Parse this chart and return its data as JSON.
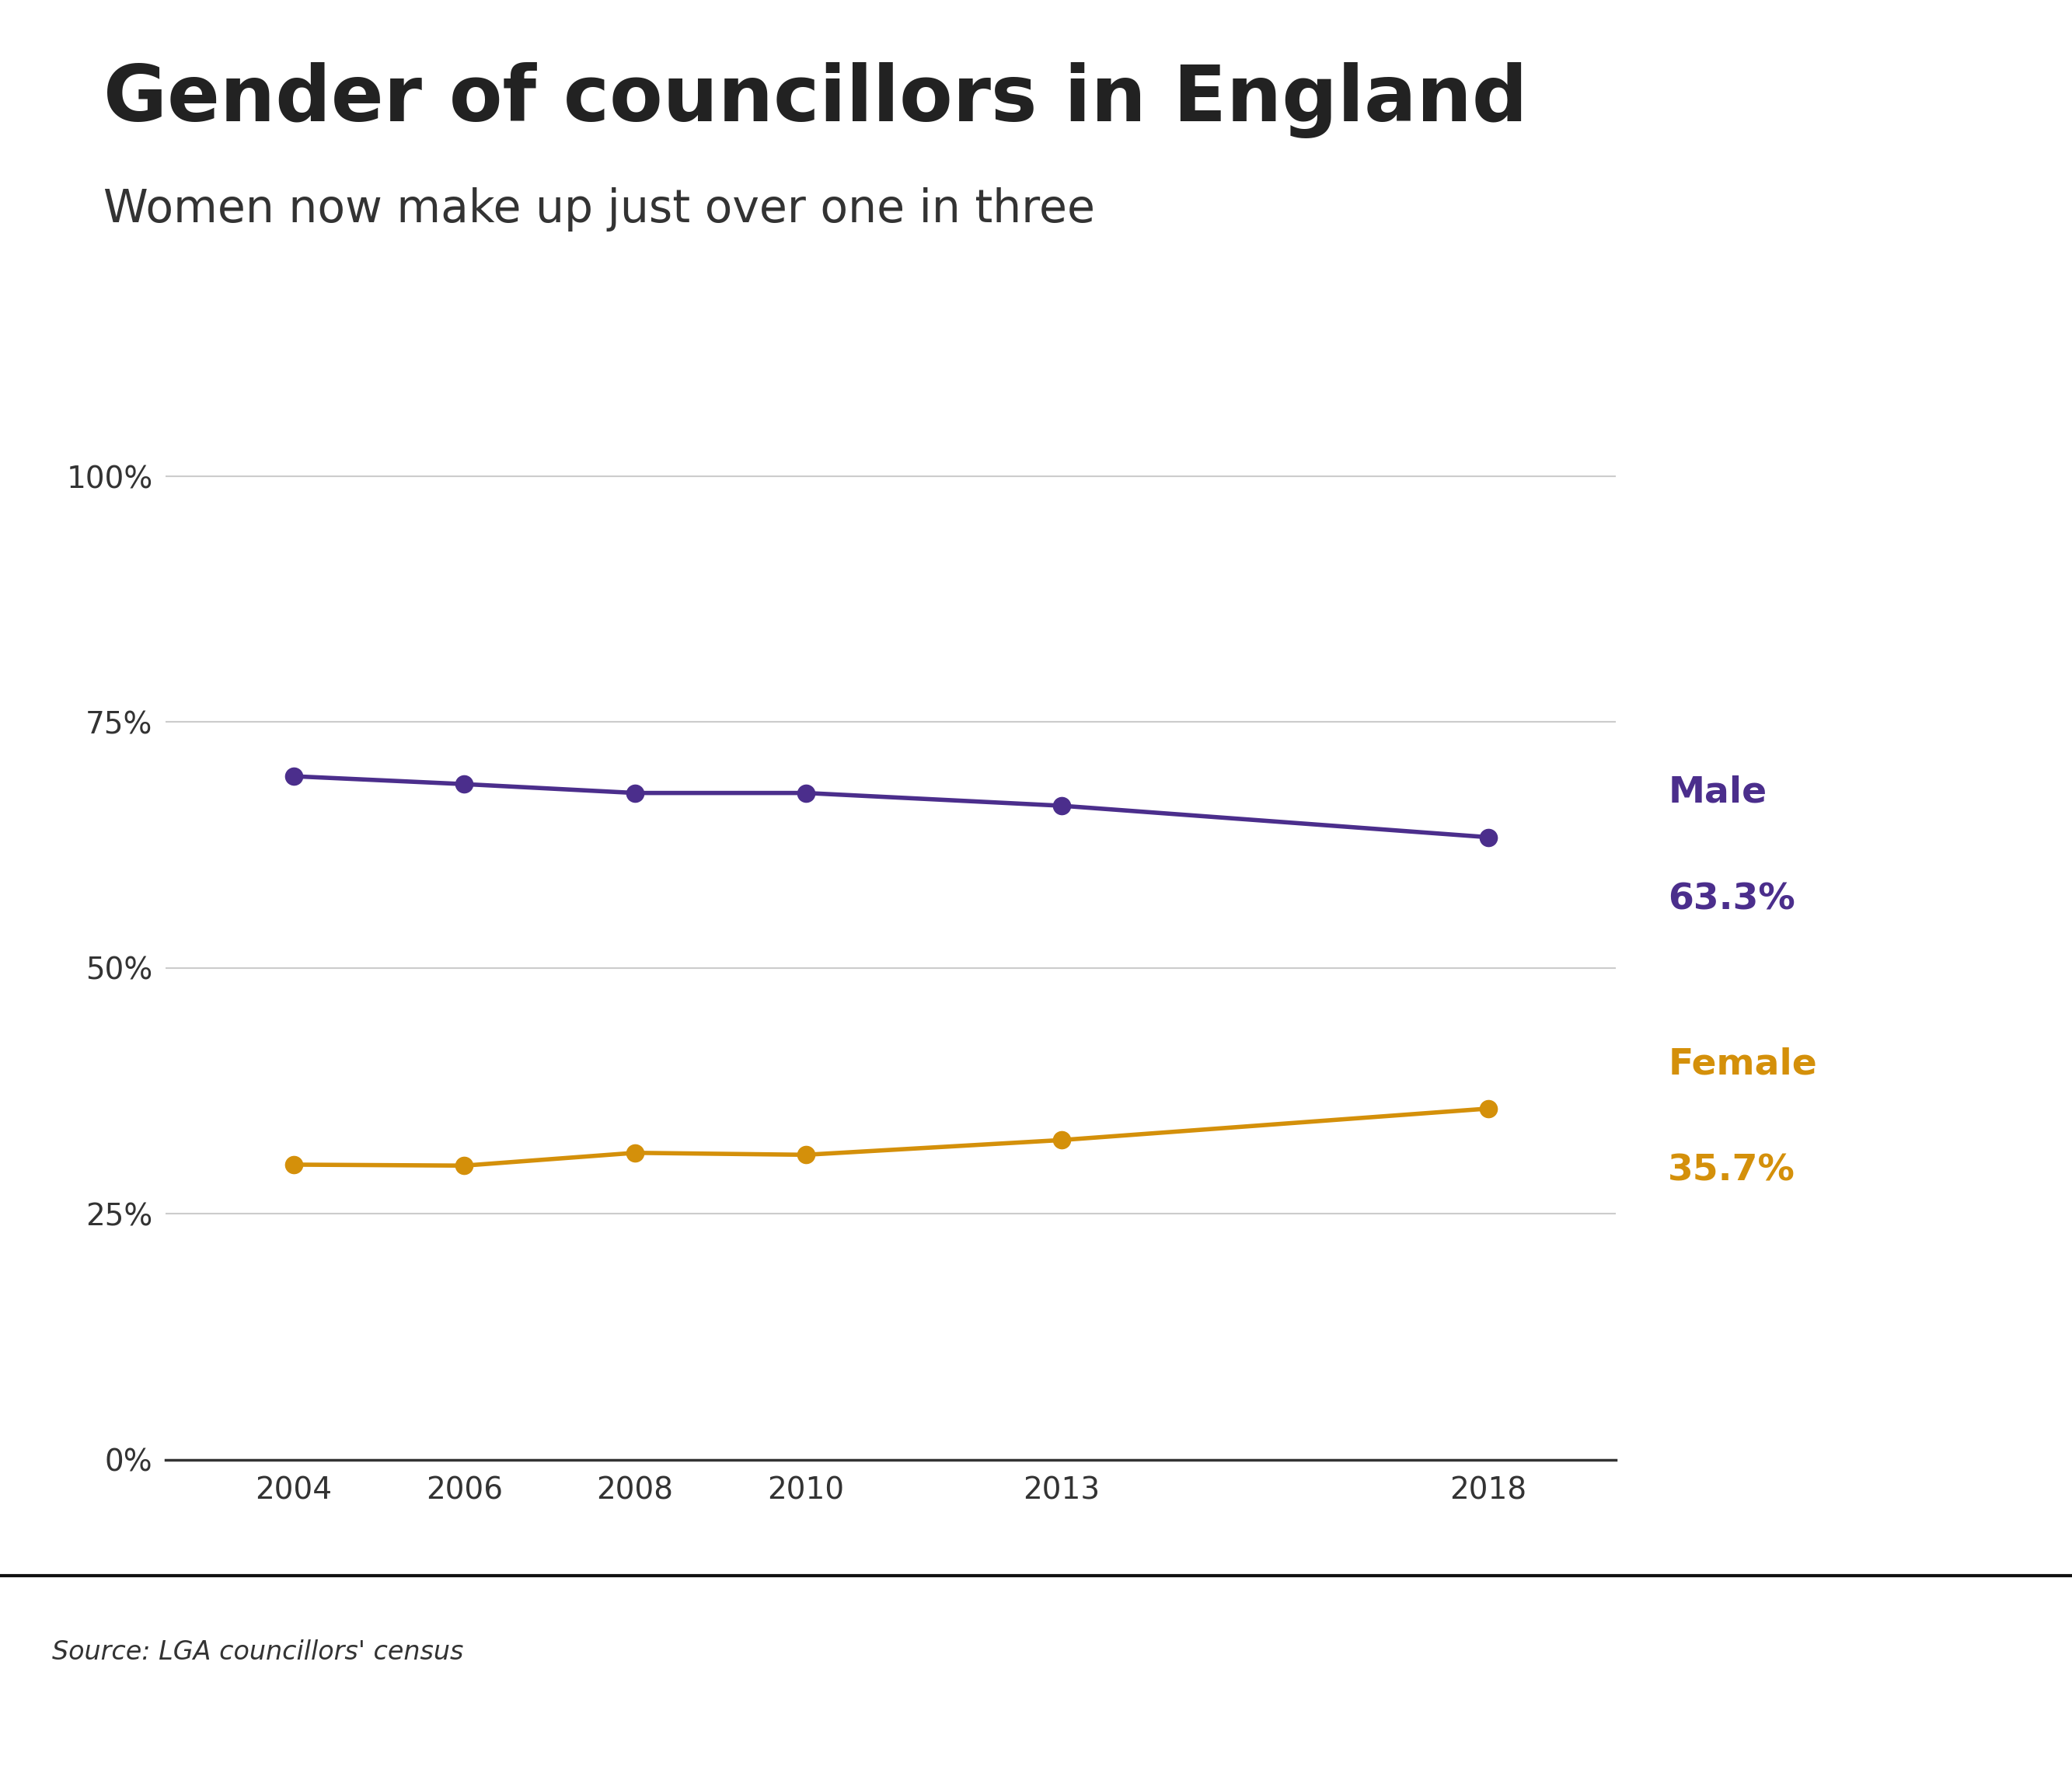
{
  "title": "Gender of councillors in England",
  "subtitle": "Women now make up just over one in three",
  "years": [
    2004,
    2006,
    2008,
    2010,
    2013,
    2018
  ],
  "male_values": [
    69.5,
    68.7,
    67.8,
    67.8,
    66.5,
    63.3
  ],
  "female_values": [
    30.0,
    29.9,
    31.2,
    31.0,
    32.5,
    35.7
  ],
  "male_color": "#4B2E8C",
  "female_color": "#D4900A",
  "male_label": "Male",
  "female_label": "Female",
  "male_pct": "63.3%",
  "female_pct": "35.7%",
  "source_text": "Source: LGA councillors' census",
  "bbc_box_color": "#6E6E6E",
  "title_color": "#222222",
  "subtitle_color": "#333333",
  "gridline_color": "#CCCCCC",
  "axis_color": "#333333",
  "background_color": "#FFFFFF",
  "ylim": [
    0,
    105
  ],
  "yticks": [
    0,
    25,
    50,
    75,
    100
  ],
  "ytick_labels": [
    "0%",
    "25%",
    "50%",
    "75%",
    "100%"
  ]
}
